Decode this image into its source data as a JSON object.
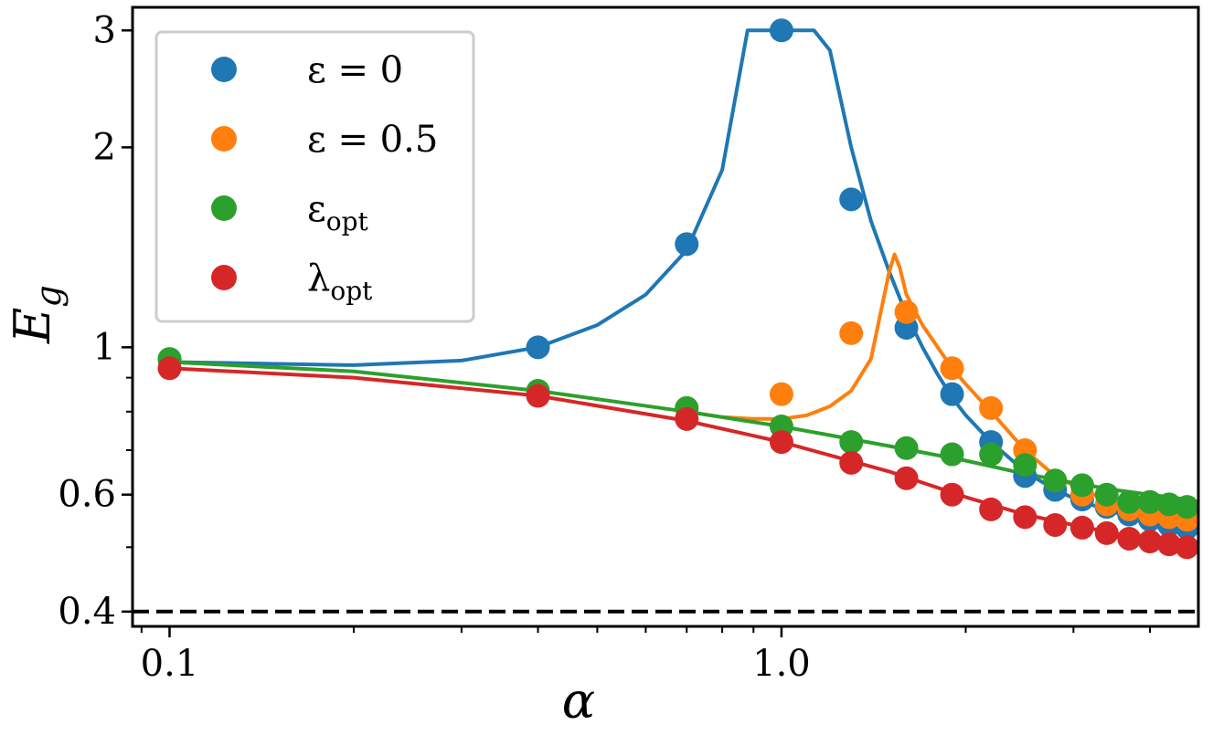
{
  "chart_data": {
    "type": "line+scatter",
    "xscale": "log",
    "yscale": "log",
    "xlim": [
      0.087,
      4.8
    ],
    "ylim": [
      0.38,
      3.25
    ],
    "xlabel": "α",
    "ylabel": {
      "base": "E",
      "sub": "g"
    },
    "xticks": [
      {
        "value": 0.1,
        "label": "0.1"
      },
      {
        "value": 1.0,
        "label": "1.0"
      }
    ],
    "yticks": [
      {
        "value": 0.4,
        "label": "0.4"
      },
      {
        "value": 0.6,
        "label": "0.6"
      },
      {
        "value": 1,
        "label": "1"
      },
      {
        "value": 2,
        "label": "2"
      },
      {
        "value": 3,
        "label": "3"
      }
    ],
    "reference_line": {
      "y": 0.4,
      "style": "dashed",
      "color": "#000000"
    },
    "legend": {
      "placement": "top-left",
      "frame": true
    },
    "series": [
      {
        "name": "ε = 0",
        "legend": {
          "base": "ε = 0",
          "sub": ""
        },
        "color": "#1f77b4",
        "markers": {
          "x": [
            0.1,
            0.4,
            0.7,
            1.0,
            1.3,
            1.6,
            1.9,
            2.2,
            2.5,
            2.8,
            3.1,
            3.4,
            3.7,
            4.0,
            4.3,
            4.6
          ],
          "y": [
            0.96,
            1.0,
            1.43,
            3.0,
            1.67,
            1.07,
            0.85,
            0.72,
            0.64,
            0.61,
            0.59,
            0.575,
            0.56,
            0.55,
            0.54,
            0.535
          ]
        },
        "curve": {
          "x": [
            0.1,
            0.2,
            0.3,
            0.4,
            0.5,
            0.6,
            0.7,
            0.8,
            0.88,
            0.95,
            1.0,
            1.05,
            1.13,
            1.2,
            1.3,
            1.4,
            1.5,
            1.6,
            1.7,
            1.8,
            1.9,
            2.0,
            2.2,
            2.5,
            2.8,
            3.1,
            3.4,
            3.7,
            4.0,
            4.3,
            4.6
          ],
          "y": [
            0.95,
            0.94,
            0.955,
            1.0,
            1.08,
            1.2,
            1.4,
            1.85,
            3.0,
            3.0,
            3.0,
            3.0,
            3.0,
            2.8,
            2.0,
            1.55,
            1.3,
            1.12,
            1.0,
            0.91,
            0.84,
            0.79,
            0.72,
            0.65,
            0.61,
            0.585,
            0.57,
            0.555,
            0.545,
            0.535,
            0.53
          ]
        }
      },
      {
        "name": "ε = 0.5",
        "legend": {
          "base": "ε = 0.5",
          "sub": ""
        },
        "color": "#ff7f0e",
        "markers": {
          "x": [
            0.7,
            1.0,
            1.3,
            1.6,
            1.9,
            2.2,
            2.5,
            2.8,
            3.1,
            3.4,
            3.7,
            4.0,
            4.3,
            4.6
          ],
          "y": [
            0.81,
            0.85,
            1.05,
            1.13,
            0.93,
            0.81,
            0.7,
            0.63,
            0.6,
            0.58,
            0.57,
            0.56,
            0.555,
            0.55
          ]
        },
        "curve": {
          "x": [
            0.7,
            0.8,
            0.9,
            1.0,
            1.1,
            1.2,
            1.3,
            1.4,
            1.5,
            1.53,
            1.56,
            1.6,
            1.7,
            1.8,
            1.9,
            2.0,
            2.2,
            2.5,
            2.8,
            3.1,
            3.4,
            3.7,
            4.0,
            4.3,
            4.6
          ],
          "y": [
            0.8,
            0.785,
            0.78,
            0.78,
            0.79,
            0.815,
            0.86,
            0.96,
            1.3,
            1.38,
            1.32,
            1.2,
            1.08,
            1.0,
            0.93,
            0.88,
            0.8,
            0.7,
            0.64,
            0.61,
            0.59,
            0.57,
            0.56,
            0.55,
            0.545
          ]
        }
      },
      {
        "name": "ε_opt",
        "legend": {
          "base": "ε",
          "sub": "opt"
        },
        "color": "#2ca02c",
        "markers": {
          "x": [
            0.1,
            0.4,
            0.7,
            1.0,
            1.3,
            1.6,
            1.9,
            2.2,
            2.5,
            2.8,
            3.1,
            3.4,
            3.7,
            4.0,
            4.3,
            4.6
          ],
          "y": [
            0.96,
            0.86,
            0.81,
            0.76,
            0.72,
            0.705,
            0.69,
            0.69,
            0.665,
            0.63,
            0.62,
            0.6,
            0.585,
            0.585,
            0.58,
            0.575
          ]
        },
        "curve": {
          "x": [
            0.1,
            0.2,
            0.4,
            0.7,
            1.0,
            1.5,
            2.0,
            2.5,
            3.0,
            3.5,
            4.0,
            4.6
          ],
          "y": [
            0.95,
            0.92,
            0.86,
            0.8,
            0.76,
            0.71,
            0.675,
            0.645,
            0.625,
            0.61,
            0.6,
            0.59
          ]
        }
      },
      {
        "name": "λ_opt",
        "legend": {
          "base": "λ",
          "sub": "opt"
        },
        "color": "#d62728",
        "markers": {
          "x": [
            0.1,
            0.4,
            0.7,
            1.0,
            1.3,
            1.6,
            1.9,
            2.2,
            2.5,
            2.8,
            3.1,
            3.4,
            3.7,
            4.0,
            4.3,
            4.6
          ],
          "y": [
            0.93,
            0.845,
            0.78,
            0.72,
            0.67,
            0.635,
            0.6,
            0.57,
            0.555,
            0.54,
            0.535,
            0.525,
            0.515,
            0.51,
            0.505,
            0.5
          ]
        },
        "curve": {
          "x": [
            0.1,
            0.2,
            0.4,
            0.7,
            1.0,
            1.5,
            2.0,
            2.5,
            3.0,
            3.5,
            4.0,
            4.6
          ],
          "y": [
            0.93,
            0.9,
            0.845,
            0.775,
            0.72,
            0.65,
            0.595,
            0.56,
            0.54,
            0.525,
            0.51,
            0.5
          ]
        }
      }
    ]
  }
}
